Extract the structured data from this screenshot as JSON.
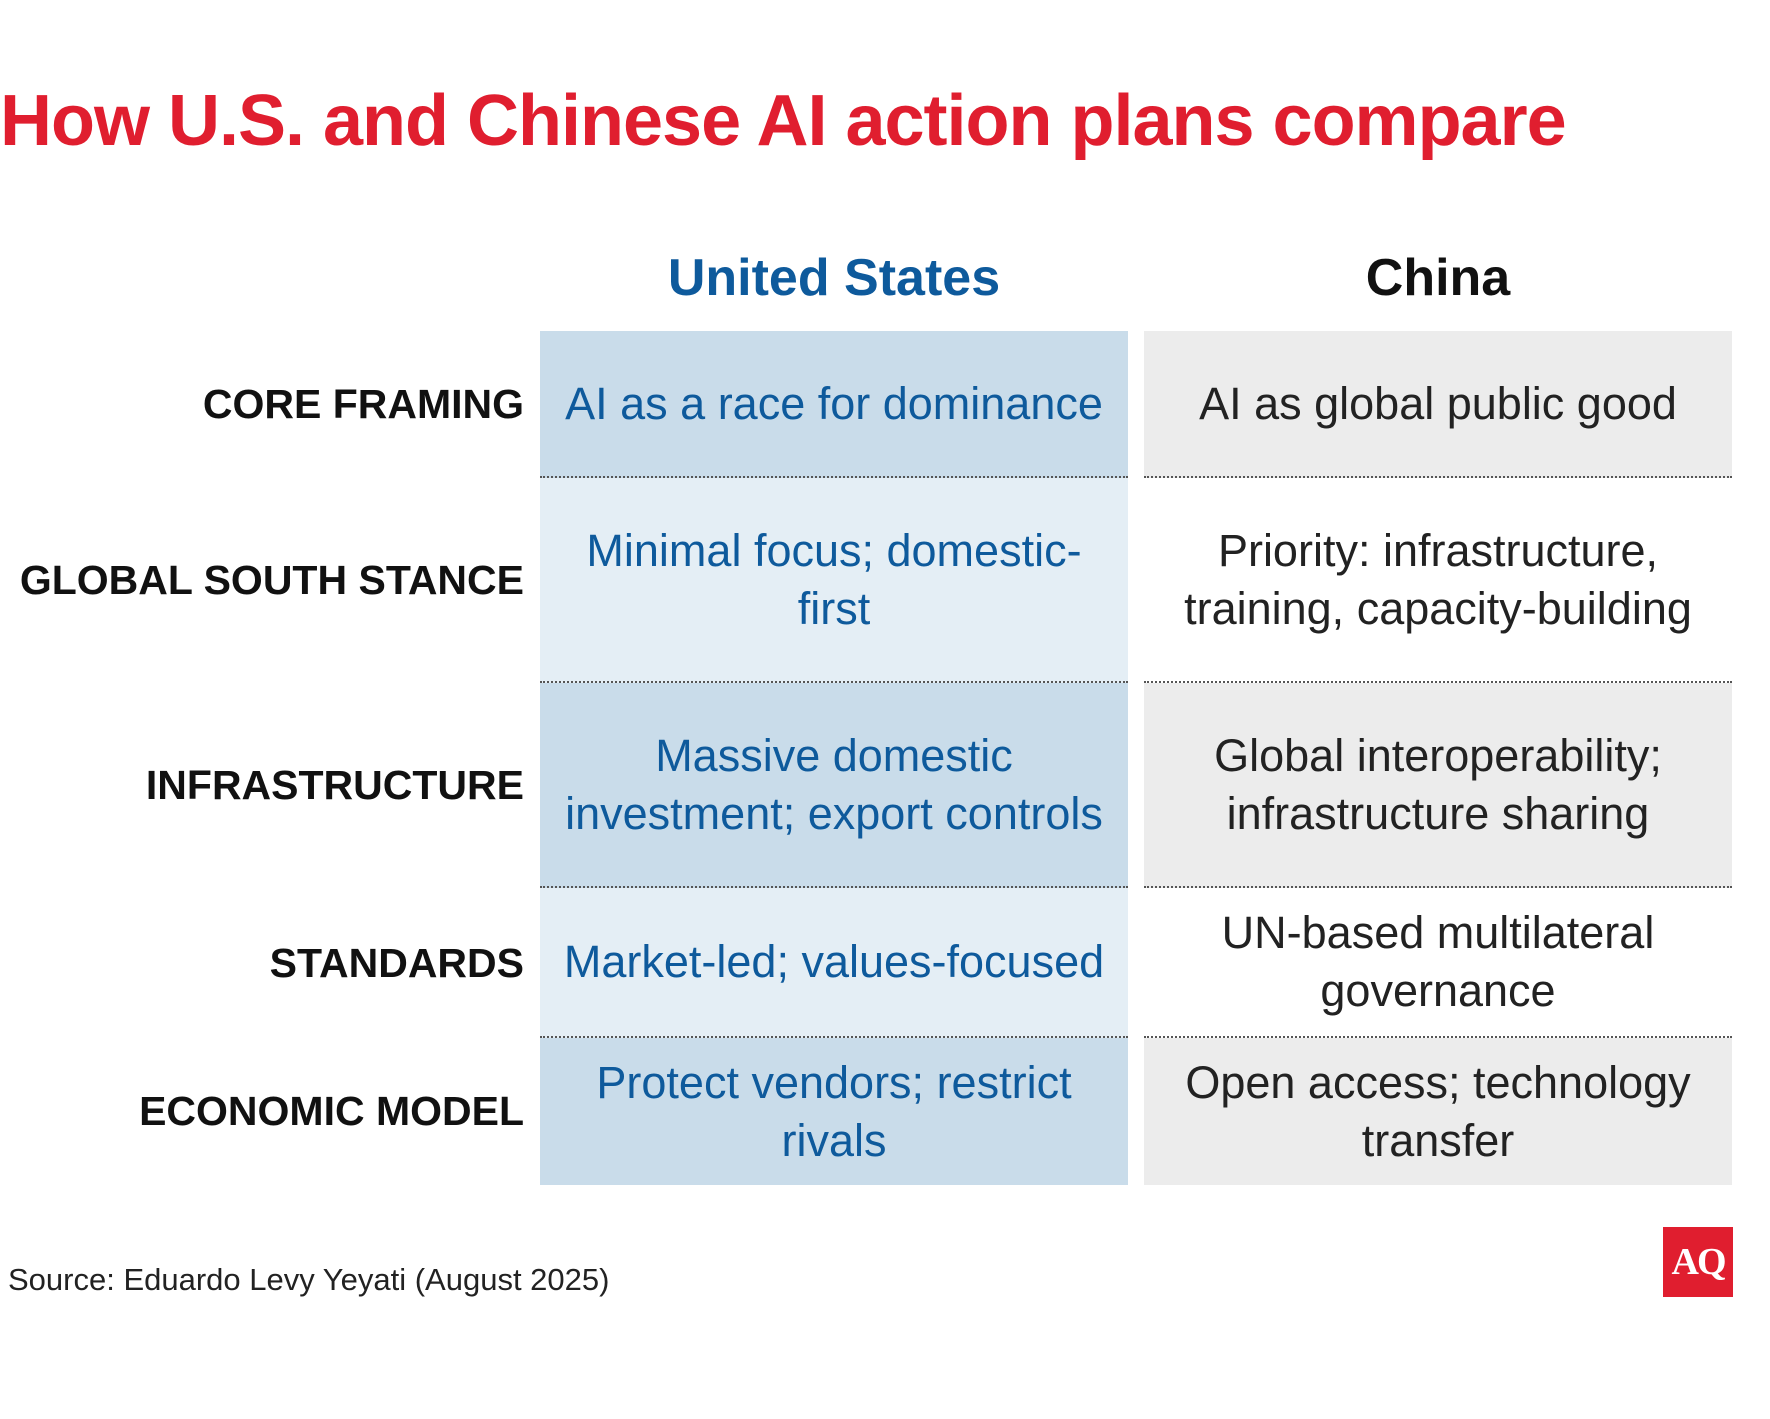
{
  "title": "How U.S. and Chinese AI action plans compare",
  "columns": {
    "us": "United States",
    "china": "China"
  },
  "rows": [
    {
      "label": "CORE FRAMING",
      "us": "AI as a race for dominance",
      "china": "AI as global public good"
    },
    {
      "label": "GLOBAL SOUTH STANCE",
      "us": "Minimal focus; domestic-first",
      "china": "Priority: infrastructure, training, capacity-building"
    },
    {
      "label": "INFRASTRUCTURE",
      "us": "Massive domestic investment; export controls",
      "china": "Global interoperability; infrastructure sharing"
    },
    {
      "label": "STANDARDS",
      "us": "Market-led; values-focused",
      "china": "UN-based multilateral governance"
    },
    {
      "label": "ECONOMIC MODEL",
      "us": "Protect vendors; restrict rivals",
      "china": "Open access; technology transfer"
    }
  ],
  "source": "Source: Eduardo Levy Yeyati (August 2025)",
  "logo": {
    "text": "AQ",
    "color": "#e01e2f"
  },
  "colors": {
    "title": "#e01e2f",
    "us_text": "#0e5a9c",
    "us_cell_dark": "#c9dcea",
    "us_cell_light": "#e4eef5",
    "china_cell": "#ececec"
  }
}
